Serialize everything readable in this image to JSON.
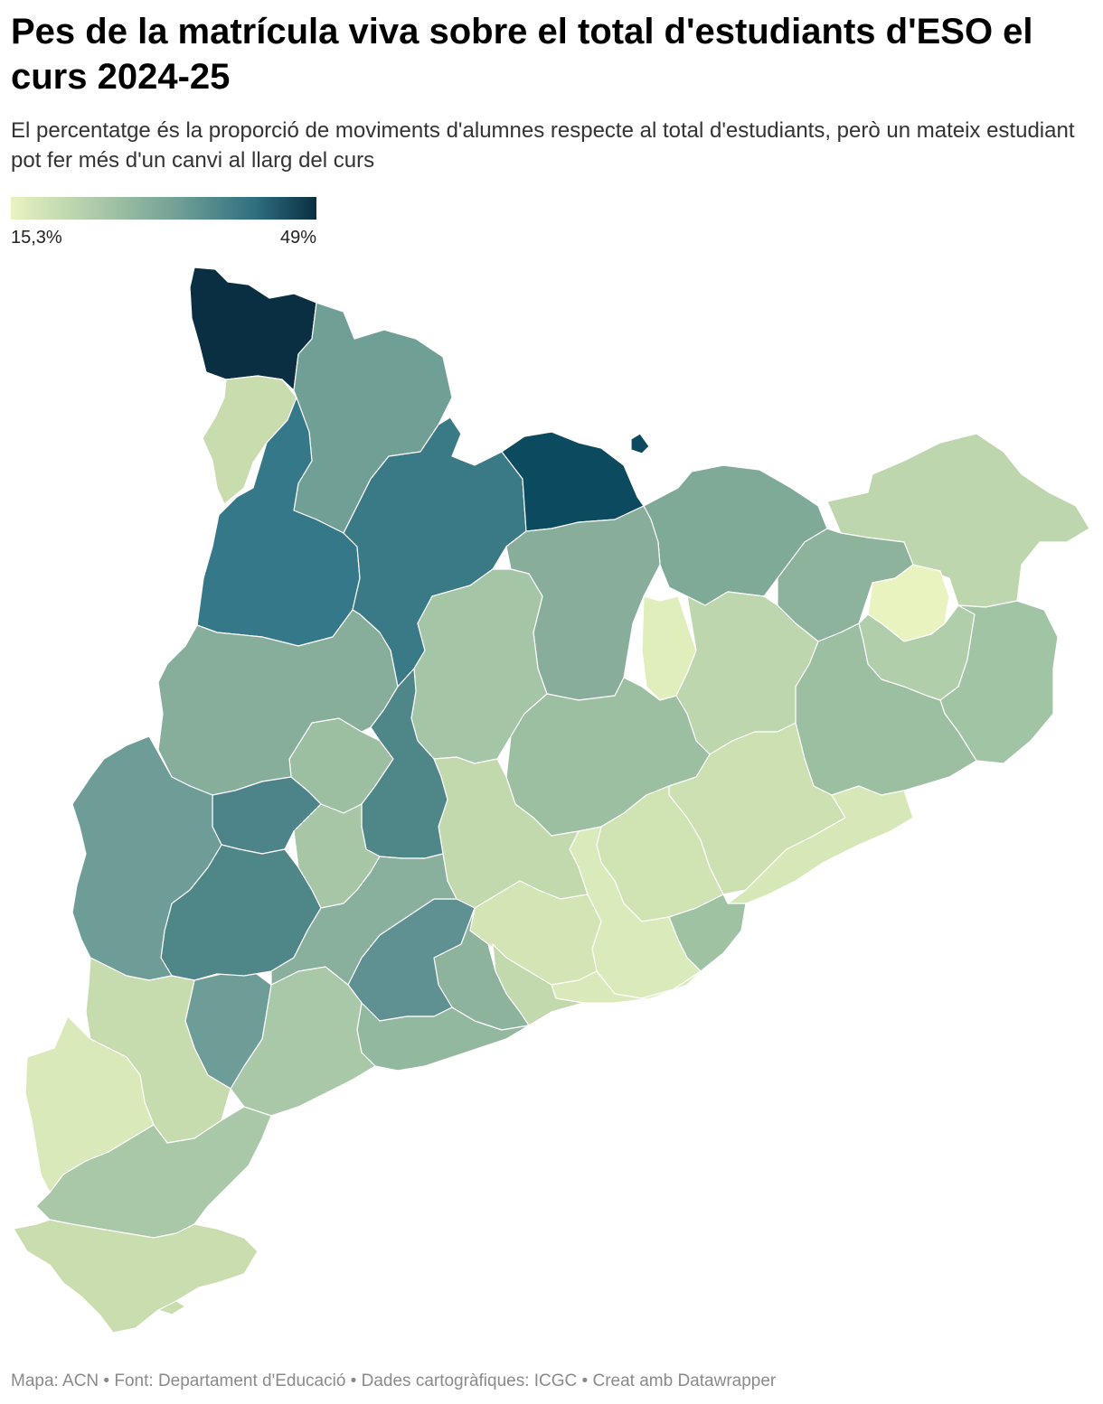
{
  "header": {
    "title": "Pes de la matrícula viva sobre el total d'estudiants d'ESO el curs 2024-25",
    "subtitle": "El percentatge és la proporció de moviments d'alumnes respecte al total d'estudiants, però un mateix estudiant pot fer més d'un canvi al llarg del curs"
  },
  "legend": {
    "min_label": "15,3%",
    "max_label": "49%",
    "colors": [
      "#e9f3c0",
      "#a7c7a6",
      "#6f9f95",
      "#2e6f80",
      "#0a2f42"
    ]
  },
  "map": {
    "stroke_color": "#ffffff",
    "region_count": 42
  },
  "footer": {
    "text": "Mapa: ACN • Font: Departament d'Educació • Dades cartogràfiques: ICGC  • Creat amb Datawrapper"
  }
}
